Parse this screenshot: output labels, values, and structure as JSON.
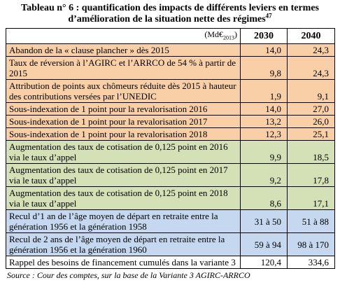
{
  "title": [
    "Tableau n° 6 : quantification des impacts de différents leviers en termes",
    "d’amélioration de la situation nette des régimes"
  ],
  "title_note": "47",
  "table": {
    "unit": [
      "(Md€",
      "2013",
      ")"
    ],
    "columns": [
      "2030",
      "2040"
    ],
    "rows": [
      [
        "Abandon de la « clause plancher » dès 2015",
        "14,0",
        "24,3"
      ],
      [
        "Taux de réversion à l’AGIRC et l’ARRCO de 54 % à partir de 2015",
        "9,8",
        "24,3"
      ],
      [
        "Attribution de points aux chômeurs réduite dès 2015 à hauteur des contributions versées par l’UNEDIC",
        "1,9",
        "9,1"
      ],
      [
        "Sous-indexation de 1 point pour la revalorisation 2016",
        "14,0",
        "27,0"
      ],
      [
        "Sous-indexation de 1 point pour la revalorisation 2017",
        "13,2",
        "26,0"
      ],
      [
        "Sous-indexation de 1 point pour la revalorisation 2018",
        "12,3",
        "25,1"
      ],
      [
        "Augmentation des taux de cotisation de 0,125 point en 2016 via le taux d’appel",
        "9,9",
        "18,5"
      ],
      [
        "Augmentation des taux de cotisation de 0,125 point en 2017 via le taux d’appel",
        "9,2",
        "17,8"
      ],
      [
        "Augmentation des taux de cotisation de 0,125 point en 2018 via le taux d’appel",
        "8,6",
        "17,1"
      ],
      [
        "Recul d’1 an de l’âge moyen de départ en retraite entre la génération 1956 et la génération 1958",
        "31 à 50",
        "51 à 88"
      ],
      [
        "Recul de 2 ans de l’âge moyen de départ en retraite entre la génération 1956 et la génération 1960",
        "59 à 94",
        "98 à 170"
      ],
      [
        "Rappel des besoins de financement cumulés dans la variante 3",
        "120,4",
        "334,6"
      ]
    ]
  },
  "source": "Source : Cour des comptes, sur la base de la Variante 3 AGIRC-ARRCO"
}
